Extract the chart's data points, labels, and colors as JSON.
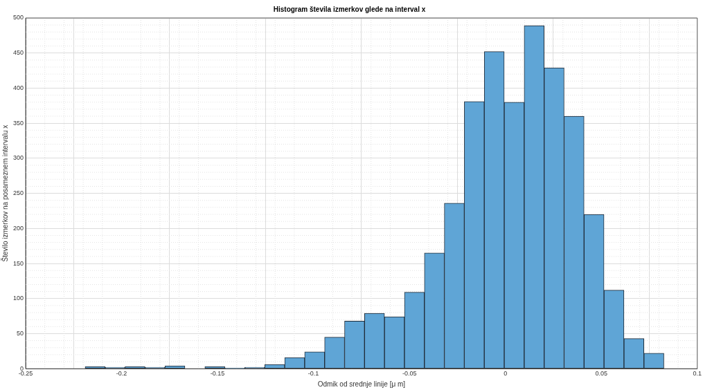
{
  "chart_data": {
    "type": "histogram",
    "title": "Histogram števila izmerkov glede na interval x",
    "xlabel": "Odmik od srednje linije [μ m]",
    "ylabel": "Število izmerkov na posameznem intervalu x",
    "bins": [
      -0.219,
      -0.2086,
      -0.1982,
      -0.1878,
      -0.1774,
      -0.167,
      -0.1566,
      -0.1462,
      -0.1358,
      -0.1254,
      -0.115,
      -0.1046,
      -0.0942,
      -0.0838,
      -0.0734,
      -0.063,
      -0.0526,
      -0.0422,
      -0.0318,
      -0.0214,
      -0.011,
      -0.0006,
      0.0098,
      0.0202,
      0.0306,
      0.041,
      0.0514,
      0.0618,
      0.0722,
      0.0826
    ],
    "values": [
      3,
      2,
      3,
      2,
      4,
      0,
      3,
      1,
      2,
      6,
      16,
      24,
      45,
      68,
      79,
      74,
      109,
      165,
      236,
      381,
      452,
      380,
      489,
      429,
      360,
      220,
      112,
      43,
      22
    ],
    "color": "#5fa5d6",
    "xlim": [
      -0.25,
      0.1
    ],
    "xticks": [
      -0.25,
      -0.2,
      -0.15,
      -0.1,
      -0.05,
      0,
      0.05,
      0.1
    ],
    "ylim": [
      0,
      500
    ],
    "yticks": [
      0,
      50,
      100,
      150,
      200,
      250,
      300,
      350,
      400,
      450,
      500
    ],
    "grid": true
  }
}
